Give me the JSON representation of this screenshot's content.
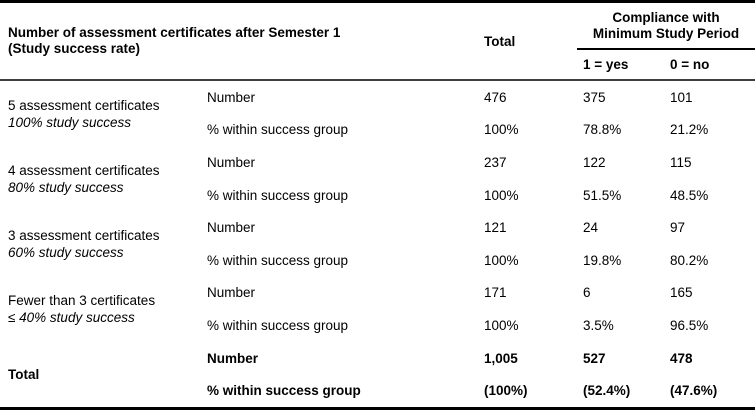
{
  "title": {
    "line1": "Number of assessment certificates after Semester 1",
    "line2": "(Study success rate)"
  },
  "columns": {
    "total": "Total",
    "compliance_line1": "Compliance with",
    "compliance_line2": "Minimum Study Period",
    "yes": "1 = yes",
    "no": "0 = no"
  },
  "groups": [
    {
      "name": "5 assessment certificates",
      "rate": "100% study success",
      "number_row": {
        "label": "Number",
        "total": "476",
        "yes": "375",
        "no": "101"
      },
      "percent_row": {
        "label": "% within success group",
        "total": "100%",
        "yes": "78.8%",
        "no": "21.2%"
      }
    },
    {
      "name": "4 assessment certificates",
      "rate": "80% study success",
      "number_row": {
        "label": "Number",
        "total": "237",
        "yes": "122",
        "no": "115"
      },
      "percent_row": {
        "label": "% within success group",
        "total": "100%",
        "yes": "51.5%",
        "no": "48.5%"
      }
    },
    {
      "name": "3 assessment certificates",
      "rate": "60% study success",
      "number_row": {
        "label": "Number",
        "total": "121",
        "yes": "24",
        "no": "97"
      },
      "percent_row": {
        "label": "% within success group",
        "total": "100%",
        "yes": "19.8%",
        "no": "80.2%"
      }
    },
    {
      "name": "Fewer than 3 certificates",
      "rate": "≤ 40% study success",
      "number_row": {
        "label": "Number",
        "total": "171",
        "yes": "6",
        "no": "165"
      },
      "percent_row": {
        "label": "% within success group",
        "total": "100%",
        "yes": "3.5%",
        "no": "96.5%"
      }
    },
    {
      "name": "Total",
      "rate": "",
      "number_row": {
        "label": "Number",
        "total": "1,005",
        "yes": "527",
        "no": "478"
      },
      "percent_row": {
        "label": "% within success group",
        "total": "(100%)",
        "yes": "(52.4%)",
        "no": "(47.6%)"
      }
    }
  ],
  "colors": {
    "text": "#000000",
    "background": "#ffffff",
    "outer_border": "#000000",
    "header_rule": "#3f3f3f"
  }
}
